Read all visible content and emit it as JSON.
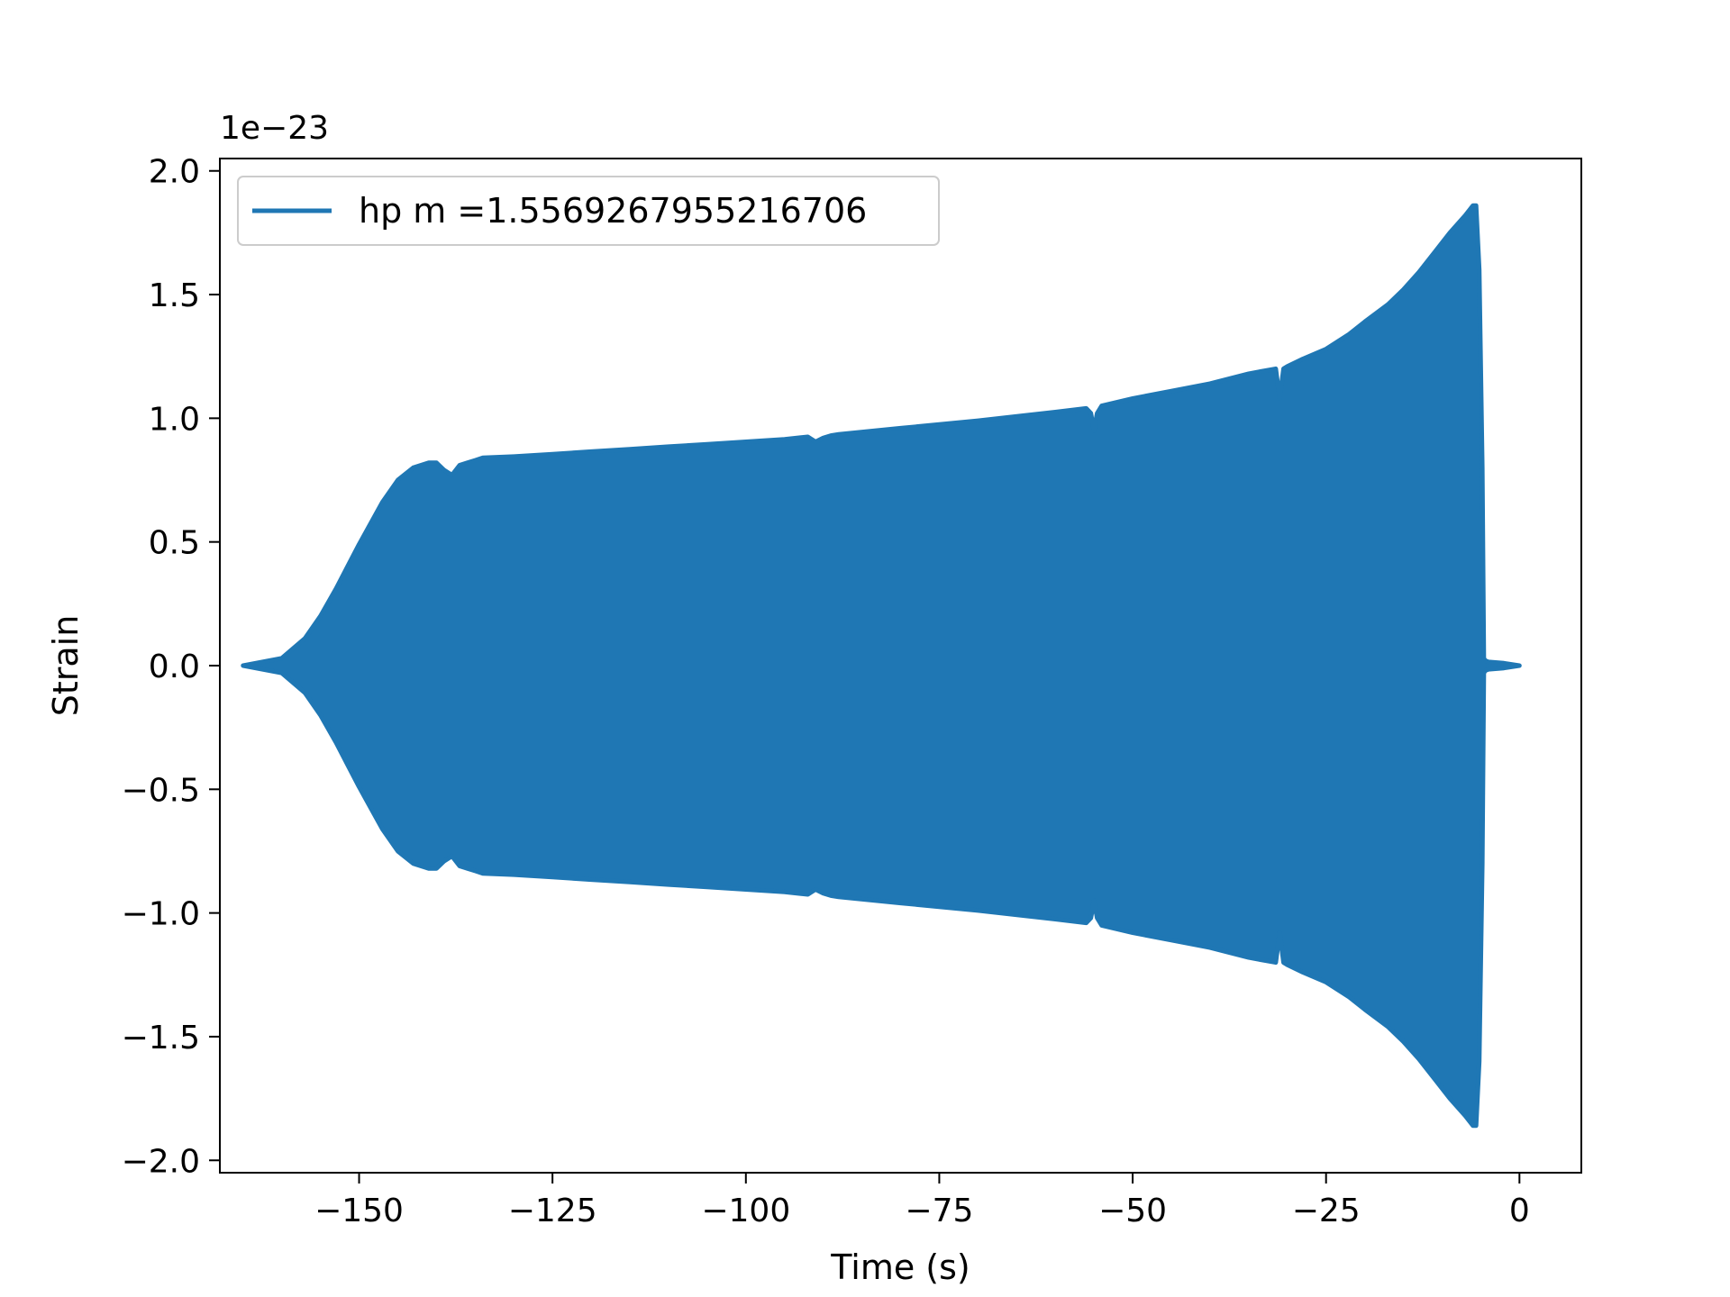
{
  "chart_data": {
    "type": "line",
    "title": "",
    "xlabel": "Time (s)",
    "ylabel": "Strain",
    "y_offset_label": "1e−23",
    "xlim": [
      -168,
      8
    ],
    "ylim": [
      -2.05,
      2.05
    ],
    "x_ticks": [
      -150,
      -125,
      -100,
      -75,
      -50,
      -25,
      0
    ],
    "x_tick_labels": [
      "−150",
      "−125",
      "−100",
      "−75",
      "−50",
      "−25",
      "0"
    ],
    "y_ticks": [
      2.0,
      1.5,
      1.0,
      0.5,
      0.0,
      -0.5,
      -1.0,
      -1.5,
      -2.0
    ],
    "y_tick_labels": [
      "2.0",
      "1.5",
      "1.0",
      "0.5",
      "0.0",
      "−0.5",
      "−1.0",
      "−1.5",
      "−2.0"
    ],
    "legend_position": "top-left",
    "grid": false,
    "series": [
      {
        "name": "hp m =1.5569267955216706",
        "color": "#1f77b4",
        "envelope": {
          "x": [
            -165,
            -160,
            -157,
            -155,
            -153,
            -150,
            -147,
            -145,
            -143,
            -141,
            -140,
            -139,
            -138,
            -137,
            -136,
            -135,
            -134,
            -130,
            -125,
            -120,
            -115,
            -110,
            -105,
            -100,
            -95,
            -92,
            -91,
            -90,
            -89,
            -88,
            -80,
            -70,
            -60,
            -56,
            -55.4,
            -55,
            -54.6,
            -54,
            -50,
            -45,
            -40,
            -35,
            -31.5,
            -31,
            -30.5,
            -30,
            -28,
            -25,
            -22,
            -20,
            -17,
            -15,
            -13,
            -11,
            -9,
            -7,
            -6,
            -5.6,
            -5.2,
            -4.8,
            -4.6,
            -4.4,
            -4,
            -2,
            0
          ],
          "upper": [
            0.0,
            0.03,
            0.11,
            0.2,
            0.31,
            0.49,
            0.66,
            0.75,
            0.8,
            0.82,
            0.82,
            0.79,
            0.77,
            0.81,
            0.82,
            0.83,
            0.84,
            0.845,
            0.855,
            0.865,
            0.875,
            0.885,
            0.895,
            0.905,
            0.915,
            0.925,
            0.905,
            0.92,
            0.93,
            0.935,
            0.96,
            0.99,
            1.025,
            1.04,
            1.02,
            0.95,
            1.02,
            1.05,
            1.08,
            1.11,
            1.14,
            1.18,
            1.2,
            1.08,
            1.2,
            1.21,
            1.24,
            1.28,
            1.34,
            1.39,
            1.46,
            1.52,
            1.59,
            1.67,
            1.75,
            1.82,
            1.86,
            1.86,
            1.6,
            0.8,
            0.03,
            0.02,
            0.015,
            0.01,
            0.0
          ],
          "lower": [
            0.0,
            -0.03,
            -0.11,
            -0.2,
            -0.31,
            -0.49,
            -0.66,
            -0.75,
            -0.8,
            -0.82,
            -0.82,
            -0.79,
            -0.77,
            -0.81,
            -0.82,
            -0.83,
            -0.84,
            -0.845,
            -0.855,
            -0.865,
            -0.875,
            -0.885,
            -0.895,
            -0.905,
            -0.915,
            -0.925,
            -0.905,
            -0.92,
            -0.93,
            -0.935,
            -0.96,
            -0.99,
            -1.025,
            -1.04,
            -1.02,
            -0.95,
            -1.02,
            -1.05,
            -1.08,
            -1.11,
            -1.14,
            -1.18,
            -1.2,
            -1.08,
            -1.2,
            -1.21,
            -1.24,
            -1.28,
            -1.34,
            -1.39,
            -1.46,
            -1.52,
            -1.59,
            -1.67,
            -1.75,
            -1.82,
            -1.86,
            -1.86,
            -1.6,
            -0.8,
            -0.03,
            -0.02,
            -0.015,
            -0.01,
            0.0
          ]
        }
      }
    ]
  }
}
